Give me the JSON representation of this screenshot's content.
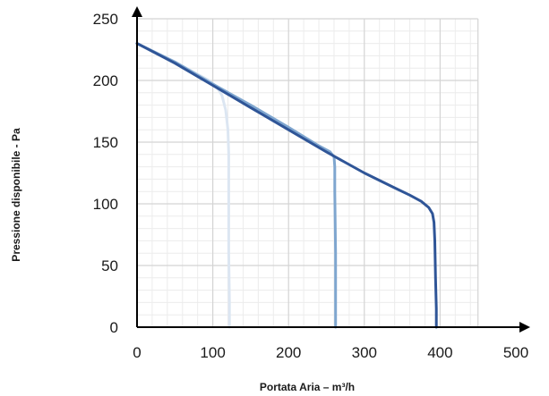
{
  "chart_data": {
    "type": "line",
    "title": "",
    "xlabel": "Portata Aria – m³/h",
    "ylabel": "Pressione disponibile - Pa",
    "xlim": [
      0,
      500
    ],
    "ylim": [
      0,
      250
    ],
    "x_ticks": [
      "0",
      "100",
      "200",
      "300",
      "400",
      "500"
    ],
    "y_ticks": [
      "0",
      "50",
      "100",
      "150",
      "200",
      "250"
    ],
    "grid": true,
    "minor_grid": true,
    "legend": "none",
    "colors": {
      "series_light": "#dce6f2",
      "series_mid": "#7fa6cf",
      "series_dark": "#2f5597",
      "major_grid": "#d4d4d4",
      "minor_grid": "#ececec",
      "axis": "#000000"
    },
    "series": [
      {
        "color_key": "series_light",
        "points": [
          [
            0,
            230
          ],
          [
            50,
            215
          ],
          [
            80,
            205
          ],
          [
            95,
            200
          ],
          [
            105,
            195
          ],
          [
            112,
            188
          ],
          [
            117,
            176
          ],
          [
            120,
            160
          ],
          [
            121,
            140
          ],
          [
            121,
            110
          ],
          [
            121,
            60
          ],
          [
            122,
            20
          ],
          [
            122,
            0
          ]
        ]
      },
      {
        "color_key": "series_mid",
        "points": [
          [
            0,
            230
          ],
          [
            50,
            215
          ],
          [
            100,
            197
          ],
          [
            150,
            180
          ],
          [
            200,
            162
          ],
          [
            240,
            147
          ],
          [
            255,
            142
          ],
          [
            260,
            138
          ],
          [
            261,
            130
          ],
          [
            261,
            110
          ],
          [
            262,
            60
          ],
          [
            262,
            20
          ],
          [
            262,
            0
          ]
        ]
      },
      {
        "color_key": "series_dark",
        "points": [
          [
            0,
            230
          ],
          [
            50,
            214
          ],
          [
            100,
            196
          ],
          [
            150,
            178
          ],
          [
            200,
            160
          ],
          [
            250,
            142
          ],
          [
            300,
            125
          ],
          [
            340,
            113
          ],
          [
            360,
            107
          ],
          [
            375,
            102
          ],
          [
            385,
            97
          ],
          [
            390,
            92
          ],
          [
            392,
            85
          ],
          [
            393,
            70
          ],
          [
            394,
            40
          ],
          [
            395,
            15
          ],
          [
            395,
            0
          ]
        ]
      }
    ]
  }
}
